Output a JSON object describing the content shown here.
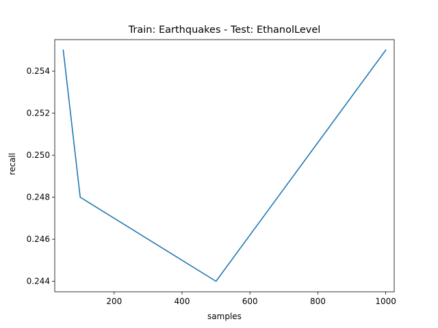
{
  "chart_data": {
    "type": "line",
    "title": "Train: Earthquakes - Test: EthanolLevel",
    "xlabel": "samples",
    "ylabel": "recall",
    "xlim": [
      25,
      1025
    ],
    "ylim": [
      0.2435,
      0.2555
    ],
    "xticks": [
      200,
      400,
      600,
      800,
      1000
    ],
    "yticks": [
      0.244,
      0.246,
      0.248,
      0.25,
      0.252,
      0.254
    ],
    "xtick_labels": [
      "200",
      "400",
      "600",
      "800",
      "1000"
    ],
    "ytick_labels": [
      "0.244",
      "0.246",
      "0.248",
      "0.250",
      "0.252",
      "0.254"
    ],
    "grid": false,
    "series": [
      {
        "color": "#1f77b4",
        "x": [
          50,
          100,
          500,
          1000
        ],
        "y": [
          0.255,
          0.248,
          0.244,
          0.255
        ]
      }
    ]
  }
}
